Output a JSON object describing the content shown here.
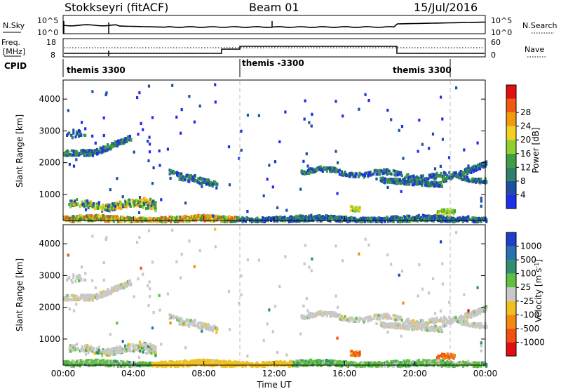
{
  "header": {
    "station": "Stokkseyri (fitACF)",
    "beam": "Beam 01",
    "date": "15/Jul/2016"
  },
  "summary_panel": {
    "nsky_label": "N.Sky",
    "nsky_ticks": [
      "10^5",
      "10^0"
    ],
    "nsearch_label": "N.Search",
    "nsearch_ticks": [
      "10^5",
      "10^0"
    ],
    "freq_label": "Freq.",
    "freq_unit": "[MHz]",
    "freq_ticks": [
      "18",
      "8"
    ],
    "nave_label": "Nave",
    "nave_ticks": [
      "60",
      "0"
    ],
    "cpid_label": "CPID",
    "cpid_segments": [
      {
        "label": "themis 3300",
        "start_hour": 0,
        "end_hour": 10
      },
      {
        "label": "themis -3300",
        "start_hour": 10,
        "end_hour": 22
      },
      {
        "label": "themis 3300",
        "start_hour": 22,
        "end_hour": 24
      }
    ]
  },
  "chart_data": [
    {
      "type": "heatmap",
      "name": "power",
      "xlabel": "",
      "ylabel": "Slant Range [km]",
      "xlim": [
        0,
        24
      ],
      "ylim": [
        180,
        4600
      ],
      "yticks": [
        1000,
        2000,
        3000,
        4000
      ],
      "colorbar": {
        "label": "Power [dB]",
        "ticks": [
          "4",
          "8",
          "12",
          "16",
          "20",
          "24",
          "28"
        ],
        "colors": [
          "#1e2fe8",
          "#1f4fa0",
          "#2f7f6a",
          "#3f9f3f",
          "#8fcf2f",
          "#f0d020",
          "#f09a10",
          "#f05a10",
          "#e01010"
        ]
      }
    },
    {
      "type": "heatmap",
      "name": "velocity",
      "xlabel": "Time UT",
      "ylabel": "Slant Range [km]",
      "xlim": [
        0,
        24
      ],
      "ylim": [
        180,
        4600
      ],
      "yticks": [
        1000,
        2000,
        3000,
        4000
      ],
      "xticks": [
        "00:00",
        "04:00",
        "08:00",
        "12:00",
        "16:00",
        "20:00",
        "00:00"
      ],
      "colorbar": {
        "label": "Velocity [m s^-1]",
        "ticks": [
          "1000",
          "500",
          "100",
          "25",
          "-25",
          "-100",
          "-500",
          "-1000"
        ],
        "colors": [
          "#1e3fc8",
          "#2a6fb0",
          "#2f8f6f",
          "#5fbf3f",
          "#c8c8c8",
          "#f0c020",
          "#f08a10",
          "#f05010",
          "#e01010"
        ]
      }
    }
  ]
}
